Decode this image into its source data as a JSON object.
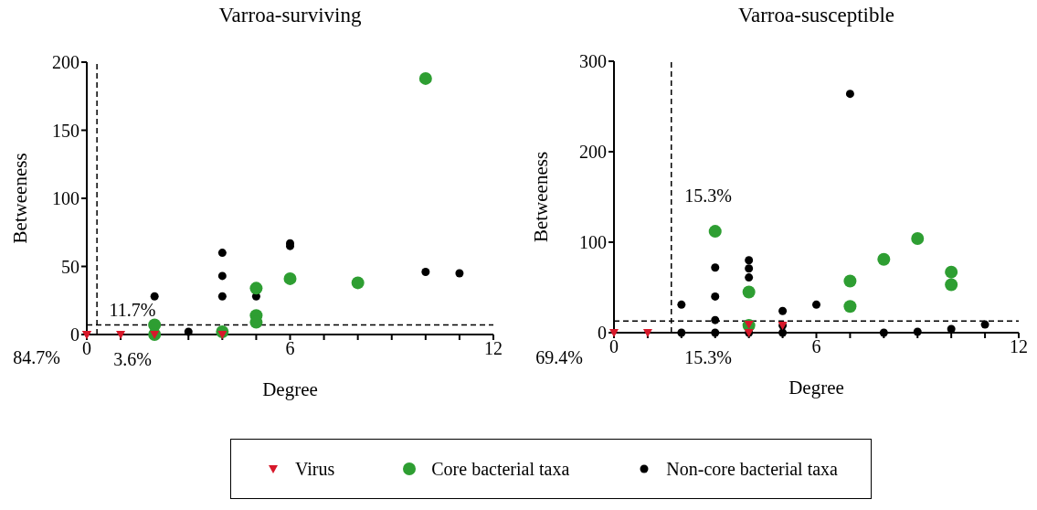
{
  "chart_data": [
    {
      "type": "scatter",
      "title": "Varroa-surviving",
      "xlabel": "Degree",
      "ylabel": "Betweeness",
      "xlim": [
        0,
        12
      ],
      "ylim": [
        0,
        200
      ],
      "xticks": [
        0,
        {
          "value": 1,
          "label": null
        },
        {
          "value": 2,
          "label": null
        },
        {
          "value": 3,
          "label": null
        },
        {
          "value": 4,
          "label": null
        },
        {
          "value": 5,
          "label": null
        },
        6,
        {
          "value": 7,
          "label": null
        },
        {
          "value": 8,
          "label": null
        },
        {
          "value": 9,
          "label": null
        },
        {
          "value": 10,
          "label": null
        },
        {
          "value": 11,
          "label": null
        },
        12
      ],
      "yticks": [
        0,
        50,
        100,
        150,
        200
      ],
      "grid": false,
      "legend": "bottom",
      "ref_lines": [
        {
          "axis": "x",
          "value": 0.3,
          "line_style": "dashed",
          "color": "#000000"
        },
        {
          "axis": "y",
          "value": 7,
          "line_style": "dashed",
          "color": "#000000"
        }
      ],
      "annotations": [
        "84.7%",
        "3.6%",
        "11.7%"
      ],
      "series": [
        {
          "name": "Virus",
          "color": "#d7182a",
          "marker": "triangle",
          "x": [
            0,
            0,
            1,
            2,
            4
          ],
          "values": [
            0,
            0,
            0,
            0,
            0
          ]
        },
        {
          "name": "Core bacterial taxa",
          "color": "#2e9e32",
          "marker": "circle",
          "x": [
            2,
            2,
            4,
            5,
            5,
            5,
            6,
            8,
            10
          ],
          "values": [
            7,
            0,
            2,
            34,
            14,
            9,
            41,
            38,
            188
          ]
        },
        {
          "name": "Non-core bacterial taxa",
          "color": "#000000",
          "marker": "circle",
          "x": [
            2,
            3,
            4,
            4,
            4,
            5,
            6,
            6,
            10,
            11
          ],
          "values": [
            28,
            2,
            60,
            43,
            28,
            28,
            67,
            65,
            46,
            45
          ]
        }
      ]
    },
    {
      "type": "scatter",
      "title": "Varroa-susceptible",
      "xlabel": "Degree",
      "ylabel": "Betweeness",
      "xlim": [
        0,
        12
      ],
      "ylim": [
        0,
        300
      ],
      "xticks": [
        0,
        {
          "value": 1,
          "label": null
        },
        {
          "value": 2,
          "label": null
        },
        {
          "value": 3,
          "label": null
        },
        {
          "value": 4,
          "label": null
        },
        {
          "value": 5,
          "label": null
        },
        6,
        {
          "value": 7,
          "label": null
        },
        {
          "value": 8,
          "label": null
        },
        {
          "value": 9,
          "label": null
        },
        {
          "value": 10,
          "label": null
        },
        {
          "value": 11,
          "label": null
        },
        12
      ],
      "yticks": [
        0,
        100,
        200,
        300
      ],
      "grid": false,
      "legend": "bottom",
      "ref_lines": [
        {
          "axis": "x",
          "value": 1.7,
          "line_style": "dashed",
          "color": "#000000"
        },
        {
          "axis": "y",
          "value": 13,
          "line_style": "dashed",
          "color": "#000000"
        }
      ],
      "annotations": [
        "69.4%",
        "15.3%",
        "15.3%"
      ],
      "series": [
        {
          "name": "Virus",
          "color": "#d7182a",
          "marker": "triangle",
          "x": [
            0,
            1,
            4,
            4,
            5
          ],
          "values": [
            0,
            0,
            9,
            0,
            8
          ]
        },
        {
          "name": "Core bacterial taxa",
          "color": "#2e9e32",
          "marker": "circle",
          "x": [
            3,
            4,
            4,
            7,
            7,
            8,
            9,
            10,
            10
          ],
          "values": [
            112,
            45,
            8,
            57,
            29,
            81,
            104,
            67,
            53
          ]
        },
        {
          "name": "Non-core bacterial taxa",
          "color": "#000000",
          "marker": "circle",
          "x": [
            2,
            2,
            3,
            3,
            3,
            3,
            4,
            4,
            4,
            4,
            5,
            5,
            5,
            6,
            7,
            8,
            9,
            10,
            11
          ],
          "values": [
            31,
            0,
            72,
            40,
            14,
            0,
            80,
            71,
            61,
            0,
            24,
            8,
            0,
            31,
            264,
            0,
            1,
            4,
            9
          ]
        }
      ]
    }
  ]
}
